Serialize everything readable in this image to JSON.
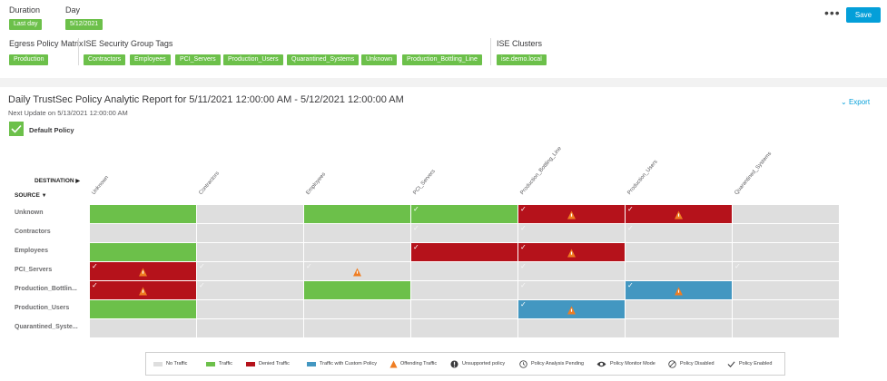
{
  "header": {
    "duration_label": "Duration",
    "duration_value": "Last day",
    "day_label": "Day",
    "day_value": "5/12/2021",
    "egress_label": "Egress Policy Matrix",
    "egress_value": "Production",
    "sgt_label": "ISE Security Group Tags",
    "sgt_tags": [
      "Contractors",
      "Employees",
      "PCI_Servers",
      "Production_Users",
      "Quarantined_Systems",
      "Unknown",
      "Production_Bottling_Line"
    ],
    "clusters_label": "ISE Clusters",
    "clusters_value": "ise.demo.local",
    "more_label": "•••",
    "save_label": "Save"
  },
  "report": {
    "title": "Daily TrustSec Policy Analytic Report for 5/11/2021 12:00:00 AM - 5/12/2021 12:00:00 AM",
    "next_update": "Next Update on 5/13/2021 12:00:00 AM",
    "export_label": "Export",
    "default_policy_label": "Default Policy"
  },
  "matrix": {
    "destination_label": "DESTINATION",
    "source_label": "SOURCE",
    "columns": [
      "Unknown",
      "Contractors",
      "Employees",
      "PCI_Servers",
      "Production_Bottling_Line",
      "Production_Users",
      "Quarantined_Systems"
    ],
    "rows": [
      {
        "name": "Unknown",
        "cells": [
          {
            "s": "traffic",
            "c": false,
            "o": false
          },
          {
            "s": "none",
            "c": false,
            "o": false
          },
          {
            "s": "traffic",
            "c": false,
            "o": false
          },
          {
            "s": "traffic",
            "c": true,
            "o": false
          },
          {
            "s": "denied",
            "c": true,
            "o": true
          },
          {
            "s": "denied",
            "c": true,
            "o": true
          },
          {
            "s": "none",
            "c": false,
            "o": false
          }
        ]
      },
      {
        "name": "Contractors",
        "cells": [
          {
            "s": "none",
            "c": false,
            "o": false
          },
          {
            "s": "none",
            "c": false,
            "o": false
          },
          {
            "s": "none",
            "c": false,
            "o": false
          },
          {
            "s": "none",
            "c": true,
            "o": false
          },
          {
            "s": "none",
            "c": true,
            "o": false
          },
          {
            "s": "none",
            "c": true,
            "o": false
          },
          {
            "s": "none",
            "c": false,
            "o": false
          }
        ]
      },
      {
        "name": "Employees",
        "cells": [
          {
            "s": "traffic",
            "c": false,
            "o": false
          },
          {
            "s": "none",
            "c": false,
            "o": false
          },
          {
            "s": "none",
            "c": false,
            "o": false
          },
          {
            "s": "denied",
            "c": true,
            "o": false
          },
          {
            "s": "denied",
            "c": true,
            "o": true
          },
          {
            "s": "none",
            "c": false,
            "o": false
          },
          {
            "s": "none",
            "c": false,
            "o": false
          }
        ]
      },
      {
        "name": "PCI_Servers",
        "cells": [
          {
            "s": "denied",
            "c": true,
            "o": true
          },
          {
            "s": "none",
            "c": true,
            "o": false
          },
          {
            "s": "none",
            "c": true,
            "o": true
          },
          {
            "s": "none",
            "c": false,
            "o": false
          },
          {
            "s": "none",
            "c": true,
            "o": false
          },
          {
            "s": "none",
            "c": false,
            "o": false
          },
          {
            "s": "none",
            "c": true,
            "o": false
          }
        ]
      },
      {
        "name": "Production_Bottlin...",
        "cells": [
          {
            "s": "denied",
            "c": true,
            "o": true
          },
          {
            "s": "none",
            "c": true,
            "o": false
          },
          {
            "s": "traffic",
            "c": false,
            "o": false
          },
          {
            "s": "none",
            "c": false,
            "o": false
          },
          {
            "s": "none",
            "c": true,
            "o": false
          },
          {
            "s": "custom",
            "c": true,
            "o": true
          },
          {
            "s": "none",
            "c": false,
            "o": false
          }
        ]
      },
      {
        "name": "Production_Users",
        "cells": [
          {
            "s": "traffic",
            "c": false,
            "o": false
          },
          {
            "s": "none",
            "c": false,
            "o": false
          },
          {
            "s": "none",
            "c": false,
            "o": false
          },
          {
            "s": "none",
            "c": false,
            "o": false
          },
          {
            "s": "custom",
            "c": true,
            "o": true
          },
          {
            "s": "none",
            "c": false,
            "o": false
          },
          {
            "s": "none",
            "c": false,
            "o": false
          }
        ]
      },
      {
        "name": "Quarantined_Syste...",
        "cells": [
          {
            "s": "none",
            "c": false,
            "o": false
          },
          {
            "s": "none",
            "c": false,
            "o": false
          },
          {
            "s": "none",
            "c": false,
            "o": false
          },
          {
            "s": "none",
            "c": false,
            "o": false
          },
          {
            "s": "none",
            "c": false,
            "o": false
          },
          {
            "s": "none",
            "c": false,
            "o": false
          },
          {
            "s": "none",
            "c": false,
            "o": false
          }
        ]
      }
    ]
  },
  "legend": {
    "no_traffic": "No Traffic",
    "traffic": "Traffic",
    "denied": "Denied Traffic",
    "custom": "Traffic with Custom Policy",
    "offending": "Offending Traffic",
    "unsupported": "Unsupported policy",
    "pending": "Policy Analysis Pending",
    "monitor": "Policy Monitor Mode",
    "disabled": "Policy Disabled",
    "enabled": "Policy Enabled"
  },
  "colors": {
    "none": "#dedede",
    "traffic": "#6cc04a",
    "denied": "#b5121b",
    "custom": "#4397c1",
    "offending": "#ef7d22",
    "accent": "#049fd9"
  }
}
